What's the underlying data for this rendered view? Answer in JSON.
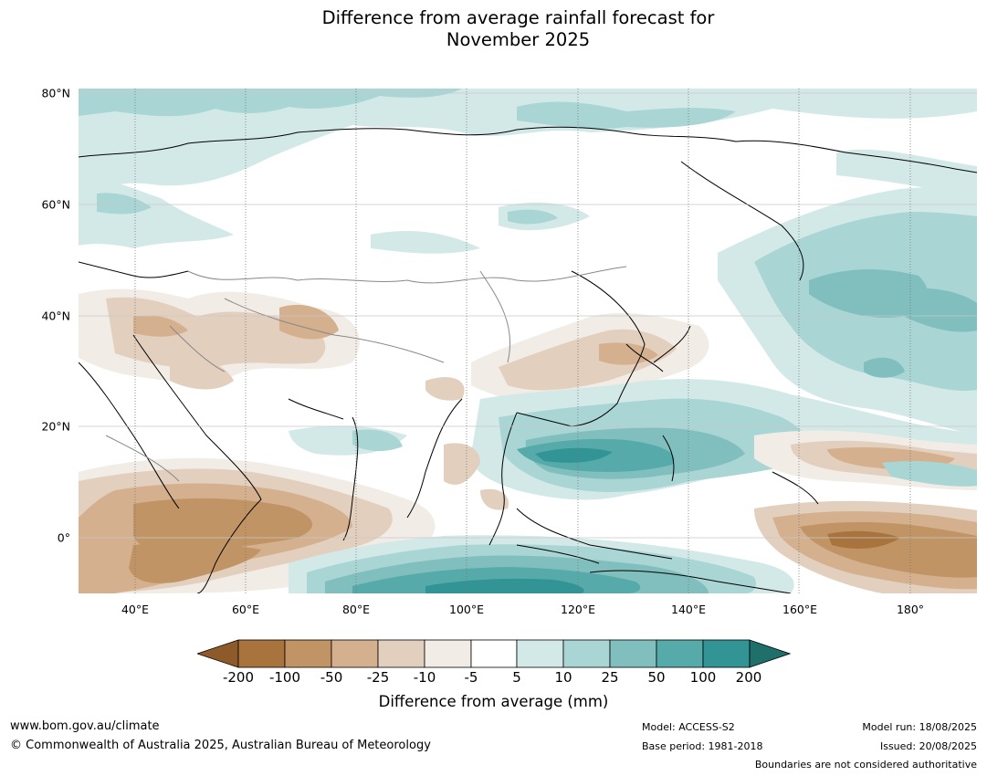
{
  "title": {
    "line1": "Difference from average rainfall forecast for",
    "line2": "November 2025"
  },
  "map": {
    "latitude_labels": [
      "80°N",
      "60°N",
      "40°N",
      "20°N",
      "0°"
    ],
    "longitude_labels": [
      "40°E",
      "60°E",
      "80°E",
      "100°E",
      "120°E",
      "140°E",
      "160°E",
      "180°"
    ]
  },
  "colorbar": {
    "tick_labels": [
      "-200",
      "-100",
      "-50",
      "-25",
      "-10",
      "-5",
      "5",
      "10",
      "25",
      "50",
      "100",
      "200"
    ],
    "label": "Difference from average (mm)",
    "colors": {
      "below_200": "#8f5a2a",
      "m200_m100": "#a8733d",
      "m100_m50": "#c19466",
      "m50_m25": "#d4b08e",
      "m25_m10": "#e3cfbd",
      "m10_m5": "#f2ece6",
      "m5_5": "#ffffff",
      "p5_10": "#d3e9e8",
      "p10_25": "#a9d5d4",
      "p25_50": "#80bfbe",
      "p50_100": "#57aaaa",
      "p100_200": "#329494",
      "above_200": "#1f6f6b"
    }
  },
  "footer": {
    "website": "www.bom.gov.au/climate",
    "copyright": "© Commonwealth of Australia 2025, Australian Bureau of Meteorology",
    "model": "Model: ACCESS-S2",
    "base_period": "Base period: 1981-2018",
    "model_run": "Model run: 18/08/2025",
    "issued": "Issued: 20/08/2025",
    "disclaimer": "Boundaries are not considered authoritative"
  }
}
